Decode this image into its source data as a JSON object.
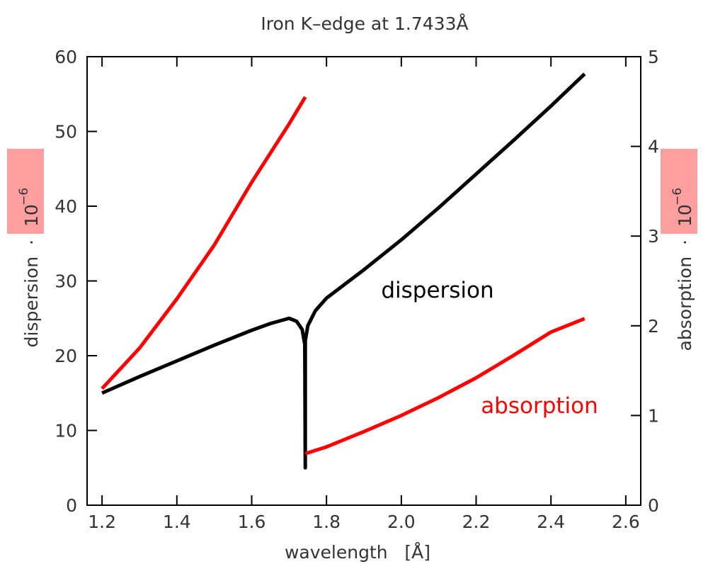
{
  "chart_data": {
    "type": "line",
    "title": "Iron K–edge at 1.7433Å",
    "xlabel": "wavelength   [Å]",
    "ylabel": "dispersion  ·",
    "y2label": "absorption  ·",
    "factor_base": "10",
    "factor_exponent": "−6",
    "xlim": [
      1.16,
      2.64
    ],
    "xticks": [
      {
        "value": 1.2,
        "label": "1.2"
      },
      {
        "value": 1.4,
        "label": "1.4"
      },
      {
        "value": 1.6,
        "label": "1.6"
      },
      {
        "value": 1.8,
        "label": "1.8"
      },
      {
        "value": 2.0,
        "label": "2.0"
      },
      {
        "value": 2.2,
        "label": "2.2"
      },
      {
        "value": 2.4,
        "label": "2.4"
      },
      {
        "value": 2.6,
        "label": "2.6"
      }
    ],
    "ylim": [
      0,
      60
    ],
    "yticks": [
      0,
      10,
      20,
      30,
      40,
      50,
      60
    ],
    "y2lim": [
      0,
      5
    ],
    "y2ticks": [
      0,
      1,
      2,
      3,
      4,
      5
    ],
    "series": [
      {
        "name": "dispersion",
        "color": "#000000",
        "x": [
          1.2,
          1.3,
          1.4,
          1.5,
          1.6,
          1.65,
          1.7,
          1.72,
          1.735,
          1.742,
          1.7433,
          1.7433,
          1.75,
          1.77,
          1.8,
          1.9,
          2.0,
          2.1,
          2.2,
          2.3,
          2.4,
          2.49
        ],
        "values": [
          15,
          17.2,
          19.3,
          21.4,
          23.4,
          24.3,
          25,
          24.6,
          23.5,
          21.5,
          5,
          22,
          24,
          26,
          27.7,
          31.5,
          35.5,
          39.8,
          44.3,
          48.8,
          53.4,
          57.7
        ]
      },
      {
        "name": "absorption",
        "color": "#ff0000",
        "axis": "y2",
        "x": [
          1.2,
          1.3,
          1.4,
          1.5,
          1.6,
          1.7,
          1.7433,
          null,
          1.7433,
          1.8,
          1.9,
          2.0,
          2.1,
          2.2,
          2.3,
          2.4,
          2.49
        ],
        "values": [
          1.3,
          1.75,
          2.3,
          2.9,
          3.6,
          4.25,
          4.55,
          null,
          0.575,
          0.65,
          0.82,
          1.0,
          1.2,
          1.42,
          1.67,
          1.93,
          2.08
        ]
      }
    ]
  }
}
